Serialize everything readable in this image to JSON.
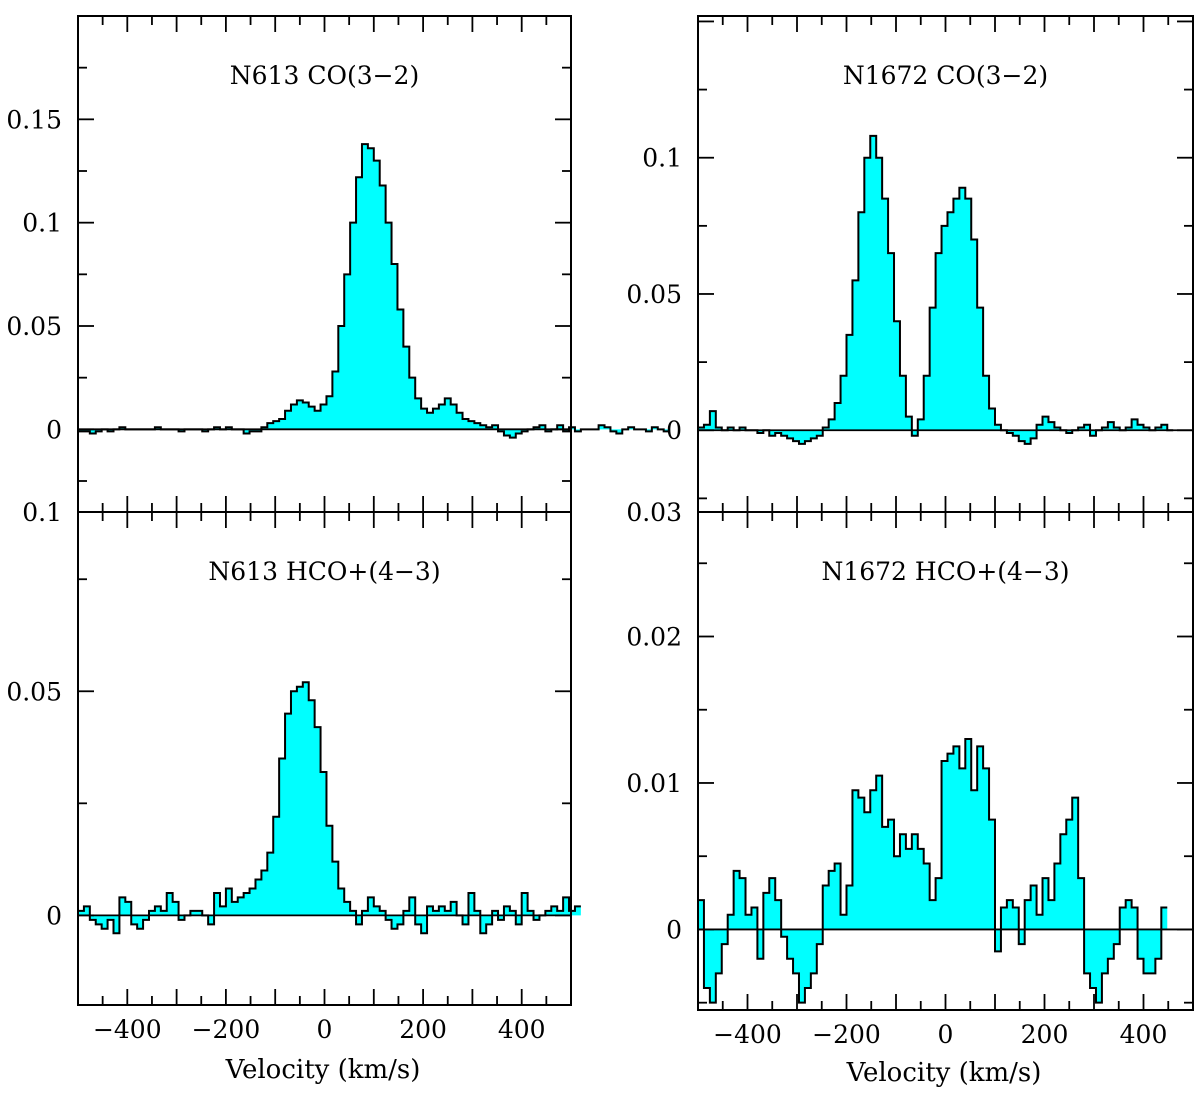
{
  "figure": {
    "xlabel_left": "Velocity (km/s)",
    "xlabel_right": "Velocity (km/s)",
    "fill_color": "#00ffff",
    "line_color": "#000000"
  },
  "chart_data": [
    {
      "type": "line",
      "style": "filled step histogram",
      "panel": "top-left",
      "title": "N613 CO(3−2)",
      "xlabel": "",
      "ylabel": "",
      "xlim": [
        -500,
        500
      ],
      "ylim": [
        -0.04,
        0.2
      ],
      "ytick_labels": [
        "0",
        "0.05",
        "0.1",
        "0.15"
      ],
      "yticks": [
        0,
        0.05,
        0.1,
        0.15
      ],
      "xticks": [
        -400,
        -200,
        0,
        200,
        400
      ],
      "x_start": -500,
      "bin_width": 12,
      "values": [
        -0.001,
        -0.001,
        -0.002,
        -0.001,
        0,
        -0.001,
        0,
        0.001,
        0,
        0,
        0,
        0,
        0,
        0.001,
        0,
        0,
        0,
        -0.001,
        0,
        0,
        0,
        -0.001,
        0,
        0.001,
        0,
        0.001,
        0,
        0,
        -0.002,
        -0.001,
        -0.001,
        0.001,
        0.003,
        0.004,
        0.005,
        0.009,
        0.012,
        0.014,
        0.013,
        0.011,
        0.009,
        0.012,
        0.016,
        0.028,
        0.05,
        0.075,
        0.1,
        0.122,
        0.138,
        0.136,
        0.13,
        0.118,
        0.1,
        0.08,
        0.058,
        0.04,
        0.025,
        0.015,
        0.01,
        0.008,
        0.01,
        0.012,
        0.015,
        0.012,
        0.008,
        0.005,
        0.004,
        0.003,
        0.002,
        0.001,
        0.002,
        -0.001,
        -0.003,
        -0.004,
        -0.002,
        -0.001,
        0,
        0.001,
        0.002,
        -0.001,
        0,
        0.002,
        -0.001,
        0.001,
        -0.001,
        0,
        0,
        0,
        0.002,
        0.001,
        -0.001,
        -0.002,
        0,
        0.001,
        0,
        0,
        -0.001,
        0.001,
        0,
        -0.001
      ],
      "bottom_label": "0.1"
    },
    {
      "type": "line",
      "style": "filled step histogram",
      "panel": "bottom-left",
      "title": "N613 HCO+(4−3)",
      "xlabel": "Velocity (km/s)",
      "ylabel": "",
      "xlim": [
        -500,
        500
      ],
      "ylim": [
        -0.02,
        0.09
      ],
      "ytick_labels": [
        "0",
        "0.05"
      ],
      "yticks": [
        0,
        0.05
      ],
      "xticks": [
        -400,
        -200,
        0,
        200,
        400
      ],
      "xtick_labels": [
        "−400",
        "−200",
        "0",
        "200",
        "400"
      ],
      "x_start": -500,
      "bin_width": 12,
      "values": [
        0.001,
        0.002,
        -0.001,
        -0.002,
        -0.003,
        -0.001,
        -0.004,
        0.004,
        0.003,
        -0.002,
        -0.003,
        -0.001,
        0.001,
        0.002,
        0.001,
        0.005,
        0.003,
        -0.001,
        0,
        0.001,
        0.001,
        0,
        -0.002,
        0.005,
        0.002,
        0.006,
        0.003,
        0.004,
        0.005,
        0.006,
        0.008,
        0.01,
        0.014,
        0.022,
        0.035,
        0.045,
        0.05,
        0.051,
        0.052,
        0.048,
        0.042,
        0.032,
        0.02,
        0.012,
        0.006,
        0.003,
        0.001,
        -0.002,
        0.001,
        0.004,
        0.002,
        0.001,
        -0.001,
        -0.003,
        -0.002,
        0.001,
        0.004,
        -0.002,
        -0.004,
        0.002,
        0.001,
        0.002,
        0.001,
        0.003,
        0,
        -0.002,
        0.005,
        0.001,
        -0.004,
        -0.002,
        0.001,
        -0.001,
        0.002,
        0.001,
        -0.002,
        0.005,
        0.001,
        -0.001,
        0,
        0.001,
        0.002,
        0.001,
        0.004,
        0.001,
        0.002
      ],
      "bottom_label": ""
    },
    {
      "type": "line",
      "style": "filled step histogram",
      "panel": "top-right",
      "title": "N1672 CO(3−2)",
      "xlabel": "",
      "ylabel": "",
      "xlim": [
        -500,
        500
      ],
      "ylim": [
        -0.03,
        0.152
      ],
      "ytick_labels": [
        "0",
        "0.05",
        "0.1"
      ],
      "yticks": [
        0,
        0.05,
        0.1
      ],
      "xticks": [
        -400,
        -200,
        0,
        200,
        400
      ],
      "x_start": -500,
      "bin_width": 12,
      "values": [
        0.001,
        0.002,
        0.007,
        0.001,
        0,
        0.001,
        0,
        0.001,
        0,
        0,
        -0.001,
        0,
        -0.002,
        -0.001,
        -0.002,
        -0.003,
        -0.004,
        -0.005,
        -0.004,
        -0.003,
        -0.002,
        0.001,
        0.004,
        0.01,
        0.02,
        0.035,
        0.055,
        0.08,
        0.1,
        0.108,
        0.1,
        0.085,
        0.065,
        0.04,
        0.02,
        0.005,
        -0.002,
        0.004,
        0.02,
        0.045,
        0.065,
        0.075,
        0.08,
        0.085,
        0.089,
        0.085,
        0.07,
        0.045,
        0.02,
        0.008,
        0.002,
        0,
        -0.001,
        -0.002,
        -0.004,
        -0.005,
        -0.003,
        0.002,
        0.005,
        0.003,
        0.001,
        0,
        -0.001,
        0,
        0.001,
        0.002,
        -0.002,
        0,
        0.001,
        0.003,
        0.001,
        0,
        0.001,
        0.004,
        0.002,
        0.001,
        0,
        0.001,
        0.002,
        0
      ],
      "bottom_label": "0.03"
    },
    {
      "type": "line",
      "style": "filled step histogram",
      "panel": "bottom-right",
      "title": "N1672 HCO+(4−3)",
      "xlabel": "Velocity (km/s)",
      "ylabel": "",
      "xlim": [
        -500,
        500
      ],
      "ylim": [
        -0.0055,
        0.0285
      ],
      "ytick_labels": [
        "0",
        "0.01",
        "0.02"
      ],
      "yticks": [
        0,
        0.01,
        0.02
      ],
      "xticks": [
        -400,
        -200,
        0,
        200,
        400
      ],
      "xtick_labels": [
        "−400",
        "−200",
        "0",
        "200",
        "400"
      ],
      "x_start": -500,
      "bin_width": 12,
      "values": [
        0.002,
        -0.004,
        -0.005,
        -0.003,
        -0.001,
        0.001,
        0.004,
        0.0035,
        0.001,
        0.0015,
        -0.002,
        0.0025,
        0.0035,
        0.002,
        -0.0005,
        -0.002,
        -0.003,
        -0.005,
        -0.004,
        -0.003,
        -0.001,
        0.003,
        0.004,
        0.0045,
        0.001,
        0.003,
        0.0095,
        0.009,
        0.008,
        0.0095,
        0.0105,
        0.007,
        0.0075,
        0.005,
        0.0065,
        0.0055,
        0.0065,
        0.0055,
        0.0045,
        0.002,
        0.0035,
        0.0115,
        0.012,
        0.0125,
        0.011,
        0.013,
        0.0095,
        0.0125,
        0.011,
        0.0075,
        -0.0015,
        0.0015,
        0.002,
        0.0015,
        -0.001,
        0.002,
        0.003,
        0.001,
        0.0035,
        0.002,
        0.0045,
        0.0065,
        0.0075,
        0.009,
        0.0035,
        -0.003,
        -0.004,
        -0.005,
        -0.003,
        -0.002,
        -0.001,
        0.0015,
        0.002,
        0.0015,
        -0.002,
        -0.003,
        -0.003,
        -0.002,
        0.0015
      ]
    }
  ]
}
